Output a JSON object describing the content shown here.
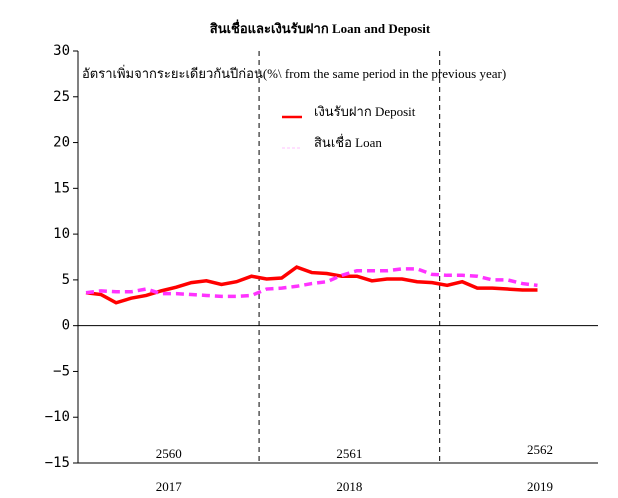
{
  "chart_data": {
    "type": "line",
    "title": "สินเชื่อและเงินรับฝาก Loan and Deposit",
    "annotation": "อัตราเพิ่มจากระยะเดียวกันปีก่อน(%\\ from the same period in the previous year)",
    "categories": [
      null,
      null,
      null,
      null,
      null,
      null,
      null,
      null,
      null,
      null,
      null,
      null,
      null,
      null,
      null,
      null,
      null,
      null,
      null,
      null,
      null,
      null,
      null,
      null,
      null,
      null,
      null,
      null,
      null,
      null,
      null
    ],
    "groups": [
      {
        "label": "2017",
        "thai": "2560"
      },
      {
        "label": "2018",
        "thai": "2561"
      },
      {
        "label": "2019",
        "thai": "2562"
      }
    ],
    "series": [
      {
        "name": "เงินรับฝาก Deposit",
        "color": "#ff0000",
        "dash": false,
        "values": [
          3.6,
          3.4,
          2.5,
          3.0,
          3.3,
          3.8,
          4.2,
          4.7,
          4.9,
          4.5,
          4.8,
          5.4,
          5.1,
          5.2,
          6.4,
          5.8,
          5.7,
          5.4,
          5.4,
          4.9,
          5.1,
          5.1,
          4.8,
          4.7,
          4.4,
          4.8,
          4.1,
          4.1,
          4.0,
          3.9,
          3.9
        ]
      },
      {
        "name": "สินเชื่อ Loan",
        "color": "#ff33ff",
        "dash": true,
        "values": [
          3.6,
          3.8,
          3.7,
          3.7,
          4.0,
          3.5,
          3.5,
          3.4,
          3.3,
          3.2,
          3.2,
          3.3,
          4.0,
          4.1,
          4.3,
          4.6,
          4.8,
          5.5,
          6.0,
          6.0,
          6.0,
          6.2,
          6.2,
          5.6,
          5.5,
          5.5,
          5.4,
          5.0,
          5.0,
          4.6,
          4.4
        ]
      }
    ],
    "ylim": [
      -15,
      30
    ],
    "yticks": [
      {
        "value": -15,
        "label": "−15"
      },
      {
        "value": -10,
        "label": "−10"
      },
      {
        "value": -5,
        "label": "−5"
      },
      0,
      5,
      10,
      15,
      20,
      25,
      30
    ],
    "legend": "top-right"
  }
}
